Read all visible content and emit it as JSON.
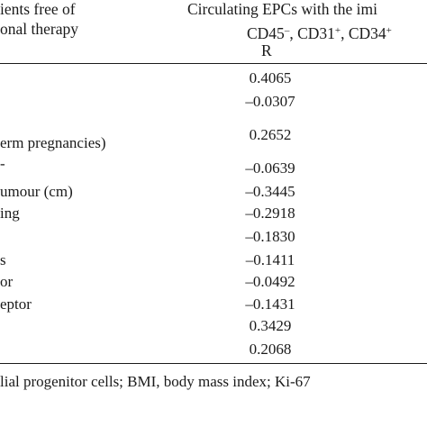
{
  "header": {
    "left_line1": "ients free of",
    "left_line2": "onal therapy",
    "right_line1": "Circulating EPCs with the imi",
    "right_markers": [
      {
        "name": "CD45",
        "sign": "–"
      },
      {
        "name": "CD31",
        "sign": "+"
      },
      {
        "name": "CD34",
        "sign": "+"
      }
    ],
    "sep1": ", ",
    "sep2": ", ",
    "stat_label": "R"
  },
  "rows": [
    {
      "label": "",
      "value": "0.4065"
    },
    {
      "label": "",
      "value": "–0.0307"
    },
    {
      "label": "erm pregnancies)",
      "value": "0.2652"
    },
    {
      "label": "-",
      "value": "–0.0639"
    },
    {
      "label": "umour (cm)",
      "value": "–0.3445"
    },
    {
      "label": "ing",
      "value": "–0.2918"
    },
    {
      "label": "",
      "value": "–0.1830"
    },
    {
      "label": "s",
      "value": "–0.1411"
    },
    {
      "label": "or",
      "value": "–0.0492"
    },
    {
      "label": "eptor",
      "value": "–0.1431"
    },
    {
      "label": "",
      "value": "0.3429"
    },
    {
      "label": "",
      "value": "0.2068"
    }
  ],
  "footnote": "lial progenitor cells; BMI, body mass index; Ki-67"
}
